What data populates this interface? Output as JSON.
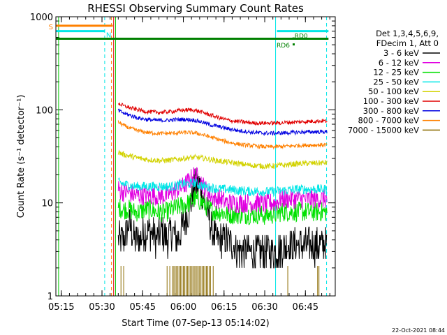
{
  "chart_data": {
    "type": "line",
    "title": "RHESSI Observing Summary Count Rates",
    "xlabel": "Start Time (07-Sep-13 05:14:02)",
    "ylabel": "Count Rate (s⁻¹ detector⁻¹)",
    "yscale": "log",
    "xlim_minutes": [
      -1,
      102
    ],
    "ylim": [
      1,
      1000
    ],
    "x_ticks": [
      {
        "minute": 1,
        "label": "05:15"
      },
      {
        "minute": 16,
        "label": "05:30"
      },
      {
        "minute": 31,
        "label": "05:45"
      },
      {
        "minute": 46,
        "label": "06:00"
      },
      {
        "minute": 61,
        "label": "06:15"
      },
      {
        "minute": 76,
        "label": "06:30"
      },
      {
        "minute": 91,
        "label": "06:45"
      }
    ],
    "y_ticks": [
      {
        "value": 1,
        "label": "1"
      },
      {
        "value": 10,
        "label": "10"
      },
      {
        "value": 100,
        "label": "100"
      },
      {
        "value": 1000,
        "label": "1000"
      }
    ],
    "legend_header": [
      "Det 1,3,4,5,6,9,",
      "FDecim 1, Att 0"
    ],
    "legend_position": "right",
    "footer_date": "22-Oct-2021 08:44",
    "data_start_minute": 22,
    "data_end_minute": 99,
    "series": [
      {
        "name": "3 - 6 keV",
        "color": "#000000",
        "x": [
          22,
          24,
          26,
          28,
          30,
          32,
          34,
          36,
          38,
          40,
          42,
          44,
          46,
          48,
          50,
          52,
          54,
          56,
          58,
          60,
          62,
          64,
          66,
          68,
          70,
          72,
          74,
          76,
          78,
          80,
          82,
          84,
          86,
          88,
          90,
          92,
          94,
          96,
          98
        ],
        "y": [
          4,
          4,
          6,
          4,
          4,
          5,
          5,
          4,
          5,
          4,
          5,
          4,
          6,
          8,
          15,
          16,
          10,
          6,
          4,
          4,
          4,
          3.5,
          3.2,
          3,
          3,
          3,
          3,
          3,
          3,
          3,
          3.2,
          3.5,
          3.5,
          3.5,
          3.5,
          3.5,
          3.5,
          3.5,
          3.5
        ],
        "noise": 0.45
      },
      {
        "name": "6 - 12 keV",
        "color": "#e100e1",
        "x": [
          22,
          24,
          26,
          28,
          30,
          32,
          34,
          36,
          38,
          40,
          42,
          44,
          46,
          48,
          50,
          52,
          54,
          56,
          58,
          60,
          62,
          64,
          66,
          68,
          70,
          72,
          74,
          76,
          78,
          80,
          82,
          84,
          86,
          88,
          90,
          92,
          94,
          96,
          98
        ],
        "y": [
          14,
          13,
          13,
          12,
          12,
          12,
          12,
          12,
          12,
          12,
          13,
          14,
          15,
          17,
          20,
          18,
          14,
          12,
          11,
          11,
          10,
          10,
          10,
          10,
          10,
          10,
          10,
          9.5,
          10,
          10,
          11,
          11,
          11,
          11,
          11,
          11,
          11,
          11,
          11
        ],
        "noise": 0.25
      },
      {
        "name": "12 - 25 keV",
        "color": "#00e100",
        "x": [
          22,
          24,
          26,
          28,
          30,
          32,
          34,
          36,
          38,
          40,
          42,
          44,
          46,
          48,
          50,
          52,
          54,
          56,
          58,
          60,
          62,
          64,
          66,
          68,
          70,
          72,
          74,
          76,
          78,
          80,
          82,
          84,
          86,
          88,
          90,
          92,
          94,
          96,
          98
        ],
        "y": [
          9,
          8.5,
          8.5,
          8,
          8,
          8.5,
          8.5,
          8,
          8,
          8,
          8.5,
          9,
          9.5,
          10,
          11,
          10.5,
          9.5,
          8.5,
          8,
          8,
          7.5,
          7.5,
          7.5,
          7.5,
          7.5,
          7.5,
          7.5,
          7.3,
          7.5,
          7.5,
          8,
          8,
          8,
          8,
          8,
          8,
          8,
          8,
          8
        ],
        "noise": 0.25
      },
      {
        "name": "25 - 50 keV",
        "color": "#00e6e6",
        "x": [
          22,
          24,
          26,
          28,
          30,
          32,
          34,
          36,
          38,
          40,
          42,
          44,
          46,
          48,
          50,
          52,
          54,
          56,
          58,
          60,
          62,
          64,
          66,
          68,
          70,
          72,
          74,
          76,
          78,
          80,
          82,
          84,
          86,
          88,
          90,
          92,
          94,
          96,
          98
        ],
        "y": [
          16.5,
          16,
          15.5,
          15,
          15,
          15,
          15,
          15,
          15,
          15,
          15,
          15.5,
          16,
          16,
          16.5,
          15.5,
          15,
          14.5,
          14.3,
          14,
          14,
          13.8,
          13.6,
          13.5,
          13.3,
          13.3,
          13.3,
          13.2,
          13.2,
          13.3,
          13.5,
          13.7,
          13.8,
          14,
          14,
          14,
          14,
          14,
          14
        ],
        "noise": 0.12
      },
      {
        "name": "50 - 100 keV",
        "color": "#d2d200",
        "x": [
          22,
          24,
          26,
          28,
          30,
          32,
          34,
          36,
          38,
          40,
          42,
          44,
          46,
          48,
          50,
          52,
          54,
          56,
          58,
          60,
          62,
          64,
          66,
          68,
          70,
          72,
          74,
          76,
          78,
          80,
          82,
          84,
          86,
          88,
          90,
          92,
          94,
          96,
          98
        ],
        "y": [
          35,
          33,
          32,
          31,
          30,
          29.5,
          29,
          28.8,
          28.5,
          28.6,
          29,
          29.5,
          30,
          30.5,
          30.8,
          30.5,
          30,
          29.2,
          28.5,
          28,
          27.5,
          27,
          26.5,
          26,
          25.5,
          25.2,
          25,
          24.8,
          24.8,
          25,
          25.3,
          25.6,
          26,
          26.3,
          26.5,
          26.6,
          26.7,
          26.8,
          27
        ],
        "noise": 0.07
      },
      {
        "name": "100 - 300 keV",
        "color": "#e10000",
        "x": [
          22,
          24,
          26,
          28,
          30,
          32,
          34,
          36,
          38,
          40,
          42,
          44,
          46,
          48,
          50,
          52,
          54,
          56,
          58,
          60,
          62,
          64,
          66,
          68,
          70,
          72,
          74,
          76,
          78,
          80,
          82,
          84,
          86,
          88,
          90,
          92,
          94,
          96,
          98
        ],
        "y": [
          118,
          110,
          106,
          102,
          99,
          96,
          95,
          94,
          94,
          95,
          96,
          98,
          99,
          100,
          99,
          96,
          92,
          88,
          84,
          81,
          78,
          76,
          75,
          74,
          73,
          72,
          72,
          72,
          72,
          72,
          72.5,
          73,
          73.5,
          74,
          74.5,
          75,
          75.5,
          75.8,
          76
        ],
        "noise": 0.05
      },
      {
        "name": "300 - 800 keV",
        "color": "#0000e1",
        "x": [
          22,
          24,
          26,
          28,
          30,
          32,
          34,
          36,
          38,
          40,
          42,
          44,
          46,
          48,
          50,
          52,
          54,
          56,
          58,
          60,
          62,
          64,
          66,
          68,
          70,
          72,
          74,
          76,
          78,
          80,
          82,
          84,
          86,
          88,
          90,
          92,
          94,
          96,
          98
        ],
        "y": [
          98,
          92,
          88,
          84,
          81,
          79,
          78,
          77,
          77,
          77,
          78,
          78.5,
          79,
          78.5,
          77.5,
          75,
          72,
          69,
          67,
          65,
          63,
          61.5,
          60,
          59,
          58,
          57,
          56.5,
          56,
          56,
          56,
          56.3,
          56.6,
          57,
          57.3,
          57.6,
          57.8,
          58,
          58,
          58
        ],
        "noise": 0.05
      },
      {
        "name": "800 - 7000 keV",
        "color": "#ff8000",
        "x": [
          22,
          24,
          26,
          28,
          30,
          32,
          34,
          36,
          38,
          40,
          42,
          44,
          46,
          48,
          50,
          52,
          54,
          56,
          58,
          60,
          62,
          64,
          66,
          68,
          70,
          72,
          74,
          76,
          78,
          80,
          82,
          84,
          86,
          88,
          90,
          92,
          94,
          96,
          98
        ],
        "y": [
          74,
          68,
          64,
          61,
          59,
          57.5,
          56.5,
          56,
          55.8,
          55.8,
          56,
          56.5,
          57,
          57,
          56.5,
          55,
          53,
          51,
          49,
          47,
          45.5,
          44,
          43,
          42,
          41.5,
          41,
          40.5,
          40,
          40,
          40,
          40.3,
          40.6,
          41,
          41.3,
          41.5,
          41.7,
          41.8,
          41.9,
          42
        ],
        "noise": 0.05
      },
      {
        "name": "7000 - 15000 keV",
        "color": "#8b6b00",
        "x": [],
        "y": []
      }
    ],
    "annotations": [
      {
        "label": "S",
        "color": "#ff8000",
        "x_start": -1,
        "x_end": 20,
        "y": 800
      },
      {
        "label": "N",
        "color": "#00e6e6",
        "x_start": -1,
        "x_end": 17,
        "y": 700
      },
      {
        "label": "",
        "color": "#00e6e6",
        "x_start": 80.5,
        "x_end": 99.5,
        "y": 700
      },
      {
        "label": "",
        "color": "#008000",
        "x_start": -1,
        "x_end": 99.5,
        "y": 580
      },
      {
        "label": "RD6",
        "color": "#008000",
        "x": 85,
        "y": 500
      },
      {
        "label": "RD0",
        "color": "#008000",
        "x": 87,
        "y": 610
      }
    ],
    "vertical_markers": [
      {
        "minute": 0,
        "color": "#00c800",
        "style": "solid"
      },
      {
        "minute": 17,
        "color": "#00e6e6",
        "style": "dashed"
      },
      {
        "minute": 19.5,
        "color": "#ff8000",
        "style": "dashed"
      },
      {
        "minute": 20.3,
        "color": "#e10000",
        "style": "solid"
      },
      {
        "minute": 21,
        "color": "#00c800",
        "style": "solid"
      },
      {
        "minute": 80,
        "color": "#00e6e6",
        "style": "solid"
      },
      {
        "minute": 98.8,
        "color": "#00e6e6",
        "style": "dashed"
      }
    ],
    "spikes_7000_15000": {
      "color": "#8b6b00",
      "minutes": [
        23,
        24,
        40,
        41,
        42,
        42.5,
        43,
        43.5,
        44,
        44.5,
        45,
        45.5,
        46,
        46.5,
        47,
        47.5,
        48,
        48.5,
        49,
        49.5,
        50,
        50.5,
        51,
        51.5,
        52,
        52.5,
        53,
        53.5,
        54,
        54.5,
        55,
        55.5,
        56,
        57,
        84.5,
        95.5,
        96
      ],
      "height": 2.1
    }
  }
}
